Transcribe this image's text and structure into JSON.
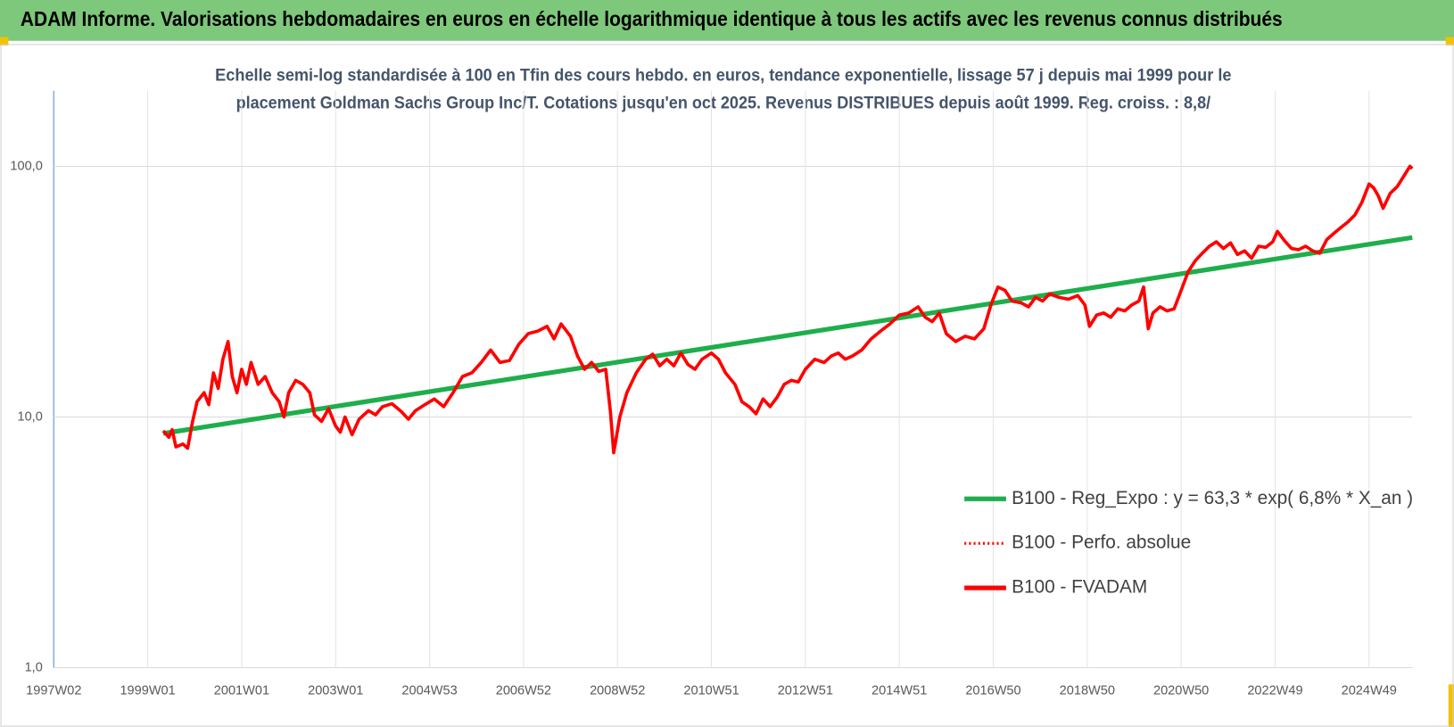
{
  "chart_data": {
    "type": "line",
    "title": "ADAM Informe. Valorisations hebdomadaires en euros en échelle logarithmique identique à tous les actifs avec les revenus connus distribués",
    "subtitle": [
      "Echelle semi-log standardisée à 100 en Tfin des cours hebdo. en euros, tendance exponentielle, lissage 57 j depuis mai 1999 pour le",
      "placement Goldman Sachs Group Inc/T. Cotations jusqu'en oct 2025. Revenus DISTRIBUES depuis août 1999. Reg. croiss. : 8,8/"
    ],
    "log_y": true,
    "grid": true,
    "legend": "lower right",
    "xlim": [
      1997,
      2025.92
    ],
    "ylim": [
      1,
      200
    ],
    "yticks": [
      {
        "value": 1,
        "label": "1,0"
      },
      {
        "value": 10,
        "label": "10,0"
      },
      {
        "value": 100,
        "label": "100,0"
      }
    ],
    "xticks": [
      {
        "value": 1997,
        "label": "1997W02"
      },
      {
        "value": 1999,
        "label": "1999W01"
      },
      {
        "value": 2001,
        "label": "2001W01"
      },
      {
        "value": 2003,
        "label": "2003W01"
      },
      {
        "value": 2005,
        "label": "2004W53"
      },
      {
        "value": 2007,
        "label": "2006W52"
      },
      {
        "value": 2009,
        "label": "2008W52"
      },
      {
        "value": 2011,
        "label": "2010W51"
      },
      {
        "value": 2013,
        "label": "2012W51"
      },
      {
        "value": 2015,
        "label": "2014W51"
      },
      {
        "value": 2017,
        "label": "2016W50"
      },
      {
        "value": 2019,
        "label": "2018W50"
      },
      {
        "value": 2021,
        "label": "2020W50"
      },
      {
        "value": 2023,
        "label": "2022W49"
      },
      {
        "value": 2025,
        "label": "2024W49"
      }
    ],
    "x": [
      1999.33,
      1999.45,
      1999.52,
      1999.6,
      1999.75,
      1999.85,
      1999.95,
      2000.05,
      2000.2,
      2000.3,
      2000.4,
      2000.5,
      2000.6,
      2000.71,
      2000.8,
      2000.9,
      2001.0,
      2001.1,
      2001.2,
      2001.35,
      2001.5,
      2001.65,
      2001.8,
      2001.9,
      2002.0,
      2002.15,
      2002.3,
      2002.45,
      2002.55,
      2002.7,
      2002.85,
      2003.0,
      2003.1,
      2003.2,
      2003.35,
      2003.5,
      2003.7,
      2003.85,
      2004.0,
      2004.2,
      2004.4,
      2004.55,
      2004.7,
      2004.9,
      2005.1,
      2005.3,
      2005.5,
      2005.7,
      2005.9,
      2006.1,
      2006.3,
      2006.5,
      2006.7,
      2006.9,
      2007.1,
      2007.3,
      2007.5,
      2007.65,
      2007.8,
      2008.0,
      2008.15,
      2008.3,
      2008.45,
      2008.6,
      2008.75,
      2008.85,
      2008.92,
      2009.05,
      2009.2,
      2009.4,
      2009.6,
      2009.75,
      2009.9,
      2010.05,
      2010.2,
      2010.35,
      2010.5,
      2010.65,
      2010.8,
      2011.0,
      2011.15,
      2011.3,
      2011.5,
      2011.65,
      2011.8,
      2011.95,
      2012.1,
      2012.25,
      2012.4,
      2012.55,
      2012.7,
      2012.85,
      2013.0,
      2013.2,
      2013.4,
      2013.55,
      2013.7,
      2013.85,
      2014.0,
      2014.2,
      2014.4,
      2014.6,
      2014.8,
      2015.0,
      2015.2,
      2015.4,
      2015.55,
      2015.7,
      2015.85,
      2016.0,
      2016.2,
      2016.4,
      2016.6,
      2016.8,
      2016.95,
      2017.1,
      2017.25,
      2017.4,
      2017.6,
      2017.75,
      2017.9,
      2018.05,
      2018.2,
      2018.4,
      2018.6,
      2018.8,
      2018.95,
      2019.05,
      2019.2,
      2019.35,
      2019.5,
      2019.65,
      2019.8,
      2019.95,
      2020.1,
      2020.2,
      2020.3,
      2020.4,
      2020.55,
      2020.7,
      2020.85,
      2021.0,
      2021.15,
      2021.3,
      2021.45,
      2021.6,
      2021.75,
      2021.9,
      2022.05,
      2022.2,
      2022.35,
      2022.5,
      2022.65,
      2022.8,
      2022.95,
      2023.05,
      2023.2,
      2023.35,
      2023.5,
      2023.65,
      2023.8,
      2023.95,
      2024.1,
      2024.25,
      2024.4,
      2024.55,
      2024.7,
      2024.85,
      2025.0,
      2025.1,
      2025.2,
      2025.3,
      2025.45,
      2025.6,
      2025.75,
      2025.87,
      2025.92
    ],
    "series": [
      {
        "name": "B100 - Reg_Expo : y = 63,3 * exp( 6,8% *  X_an )",
        "color": "#1eae4b",
        "dash": "solid",
        "x": [
          1999.33,
          2025.92
        ],
        "values": [
          8.6,
          52
        ]
      },
      {
        "name": "B100 - Perfo. absolue",
        "color": "#ff0000",
        "dash": "dotted",
        "values": [
          8.8,
          8.3,
          8.9,
          7.6,
          7.8,
          7.5,
          9.5,
          11.5,
          12.5,
          11.2,
          15,
          13,
          17,
          20,
          14.5,
          12.5,
          15.5,
          13.5,
          16.5,
          13.5,
          14.5,
          12.5,
          11.5,
          10,
          12.5,
          14,
          13.5,
          12.5,
          10.2,
          9.6,
          10.8,
          9.2,
          8.7,
          10,
          8.5,
          9.8,
          10.6,
          10.2,
          11,
          11.3,
          10.5,
          9.8,
          10.6,
          11.2,
          11.8,
          11,
          12.5,
          14.5,
          15,
          16.5,
          18.5,
          16.5,
          16.8,
          19.5,
          21.5,
          22,
          23,
          20.5,
          23.5,
          21,
          17.5,
          15.5,
          16.5,
          15.2,
          15.5,
          10.5,
          7.2,
          10,
          12.5,
          15,
          17,
          17.8,
          16,
          17,
          16,
          18,
          16.2,
          15.5,
          17,
          18,
          17,
          15,
          13.5,
          11.5,
          11,
          10.3,
          11.8,
          11,
          12,
          13.5,
          14,
          13.8,
          15.5,
          17,
          16.5,
          17.5,
          18,
          17,
          17.5,
          18.5,
          20.5,
          22,
          23.5,
          25.5,
          26,
          27.5,
          25,
          24,
          26,
          21.5,
          20,
          21,
          20.5,
          22.5,
          28,
          33,
          32,
          29,
          28.5,
          27.5,
          30,
          29,
          31,
          30,
          29.5,
          30.5,
          28,
          23,
          25.5,
          26,
          25,
          27,
          26.5,
          28,
          29,
          33,
          22.5,
          26,
          27.5,
          26.5,
          27,
          32,
          38,
          42,
          45,
          48,
          50,
          47,
          49.5,
          44.5,
          46,
          43,
          48,
          47.5,
          50,
          55,
          50.5,
          47,
          46.5,
          48,
          46,
          45,
          51,
          54,
          57,
          60,
          64,
          72,
          85,
          82,
          76,
          68,
          78,
          83,
          92,
          100,
          98
        ]
      },
      {
        "name": "B100 - FVADAM",
        "color": "#ff0000",
        "dash": "solid",
        "values": [
          8.8,
          8.3,
          8.9,
          7.6,
          7.8,
          7.5,
          9.5,
          11.5,
          12.5,
          11.2,
          15,
          13,
          17,
          20,
          14.5,
          12.5,
          15.5,
          13.5,
          16.5,
          13.5,
          14.5,
          12.5,
          11.5,
          10,
          12.5,
          14,
          13.5,
          12.5,
          10.2,
          9.6,
          10.8,
          9.2,
          8.7,
          10,
          8.5,
          9.8,
          10.6,
          10.2,
          11,
          11.3,
          10.5,
          9.8,
          10.6,
          11.2,
          11.8,
          11,
          12.5,
          14.5,
          15,
          16.5,
          18.5,
          16.5,
          16.8,
          19.5,
          21.5,
          22,
          23,
          20.5,
          23.5,
          21,
          17.5,
          15.5,
          16.5,
          15.2,
          15.5,
          10.5,
          7.2,
          10,
          12.5,
          15,
          17,
          17.8,
          16,
          17,
          16,
          18,
          16.2,
          15.5,
          17,
          18,
          17,
          15,
          13.5,
          11.5,
          11,
          10.3,
          11.8,
          11,
          12,
          13.5,
          14,
          13.8,
          15.5,
          17,
          16.5,
          17.5,
          18,
          17,
          17.5,
          18.5,
          20.5,
          22,
          23.5,
          25.5,
          26,
          27.5,
          25,
          24,
          26,
          21.5,
          20,
          21,
          20.5,
          22.5,
          28,
          33,
          32,
          29,
          28.5,
          27.5,
          30,
          29,
          31,
          30,
          29.5,
          30.5,
          28,
          23,
          25.5,
          26,
          25,
          27,
          26.5,
          28,
          29,
          33,
          22.5,
          26,
          27.5,
          26.5,
          27,
          32,
          38,
          42,
          45,
          48,
          50,
          47,
          49.5,
          44.5,
          46,
          43,
          48,
          47.5,
          50,
          55,
          50.5,
          47,
          46.5,
          48,
          46,
          45,
          51,
          54,
          57,
          60,
          64,
          72,
          85,
          82,
          76,
          68,
          78,
          83,
          92,
          100,
          98
        ]
      }
    ]
  }
}
